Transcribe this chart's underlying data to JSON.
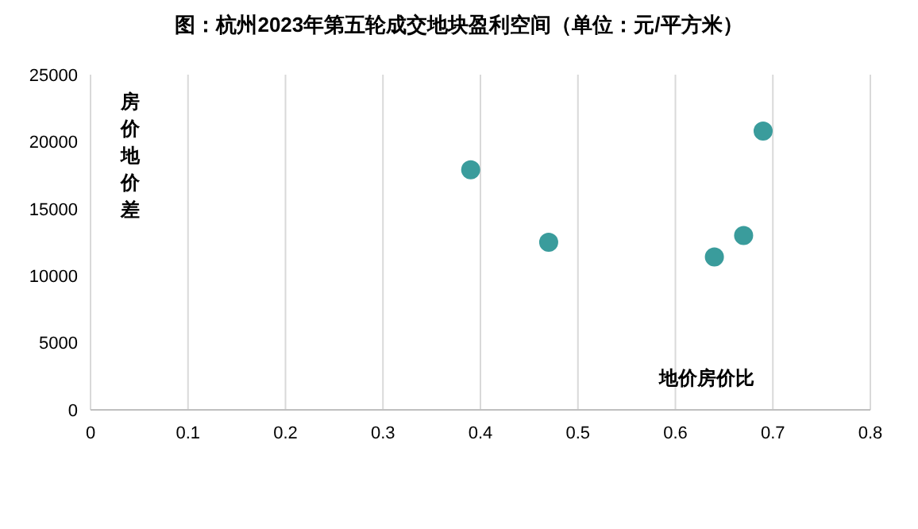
{
  "chart_data": {
    "type": "scatter",
    "title": "图：杭州2023年第五轮成交地块盈利空间（单位：元/平方米）",
    "xlabel": "地价房价比",
    "ylabel": "房价地价差",
    "x": [
      0.39,
      0.47,
      0.64,
      0.67,
      0.69
    ],
    "series": [
      {
        "color": "#3a9c9c",
        "values": [
          17900,
          12500,
          11400,
          13000,
          20800
        ]
      }
    ],
    "xlim": [
      0,
      0.8
    ],
    "xticks": [
      0,
      0.1,
      0.2,
      0.3,
      0.4,
      0.5,
      0.6,
      0.7,
      0.8
    ],
    "ylim": [
      0,
      25000
    ],
    "yticks": [
      0,
      5000,
      10000,
      15000,
      20000,
      25000
    ],
    "grid": "x",
    "marker": "circle"
  }
}
